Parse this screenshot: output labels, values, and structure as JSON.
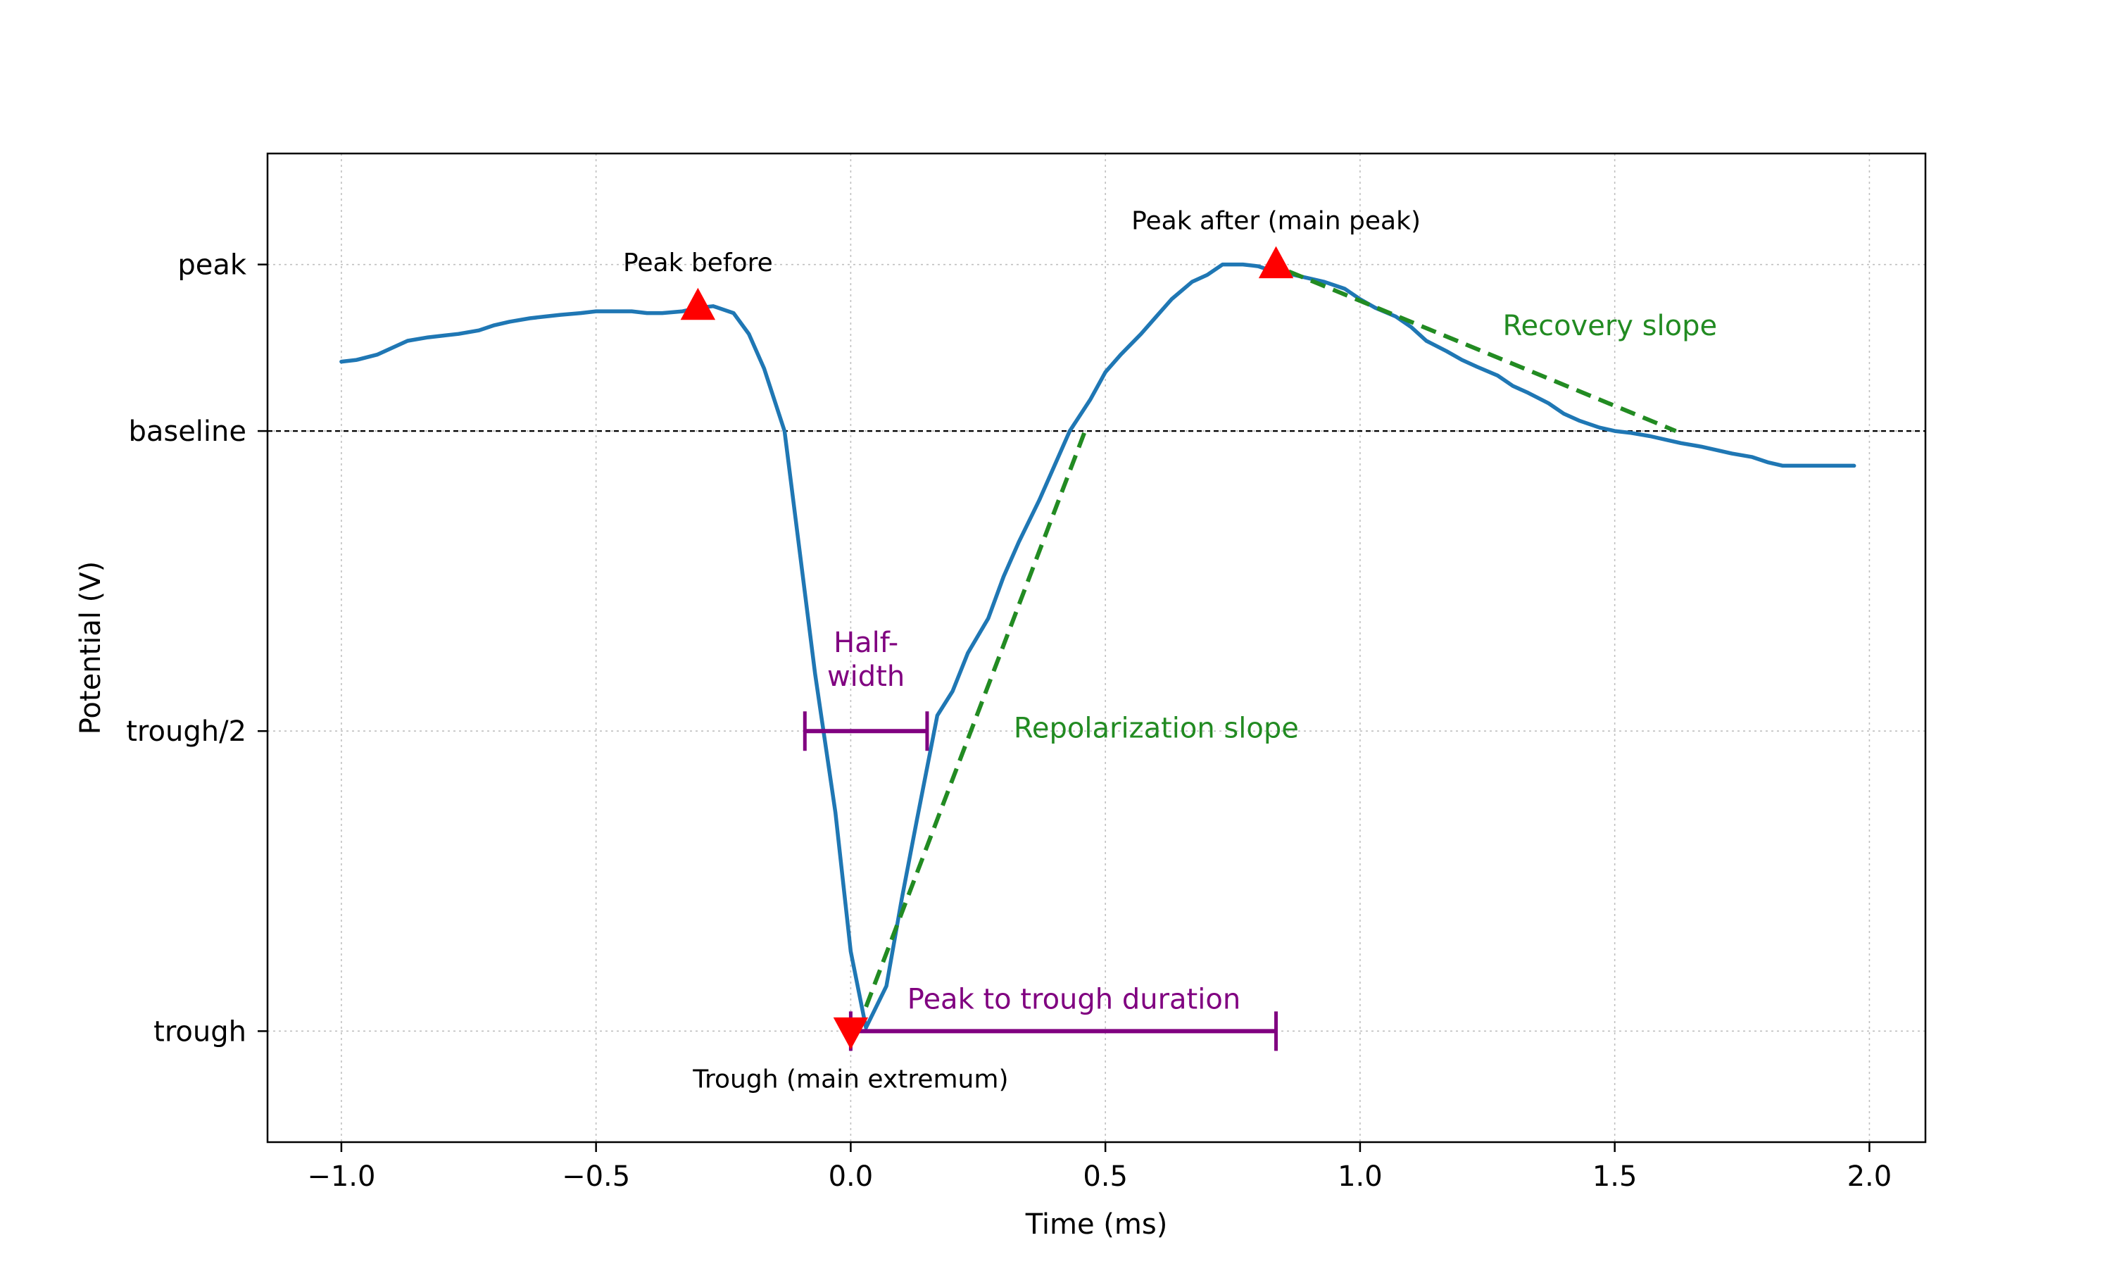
{
  "chart_data": {
    "type": "line",
    "xlabel": "Time (ms)",
    "ylabel": "Potential (V)",
    "xlim": [
      -1.145,
      2.11
    ],
    "ylim": [
      -1.85,
      1.0
    ],
    "x_ticks": [
      -1.0,
      -0.5,
      0.0,
      0.5,
      1.0,
      1.5,
      2.0
    ],
    "x_tick_labels": [
      "−1.0",
      "−0.5",
      "0.0",
      "0.5",
      "1.0",
      "1.5",
      "2.0"
    ],
    "y_ticks": [
      {
        "value": 0.68,
        "label": "peak"
      },
      {
        "value": 0.2,
        "label": "baseline"
      },
      {
        "value": -0.665,
        "label": "trough/2"
      },
      {
        "value": -1.53,
        "label": "trough"
      }
    ],
    "grid": true,
    "baseline": 0.2,
    "series": [
      {
        "color": "#1f77b4",
        "x": [
          -1.0,
          -0.97,
          -0.93,
          -0.9,
          -0.87,
          -0.83,
          -0.8,
          -0.77,
          -0.73,
          -0.7,
          -0.67,
          -0.63,
          -0.6,
          -0.57,
          -0.53,
          -0.5,
          -0.47,
          -0.43,
          -0.4,
          -0.37,
          -0.33,
          -0.3,
          -0.27,
          -0.23,
          -0.2,
          -0.17,
          -0.13,
          -0.1,
          -0.07,
          -0.03,
          0.0,
          0.03,
          0.07,
          0.1,
          0.13,
          0.17,
          0.2,
          0.23,
          0.27,
          0.3,
          0.33,
          0.37,
          0.4,
          0.43,
          0.47,
          0.5,
          0.53,
          0.57,
          0.6,
          0.63,
          0.67,
          0.7,
          0.73,
          0.77,
          0.8,
          0.83,
          0.87,
          0.9,
          0.93,
          0.97,
          1.0,
          1.03,
          1.07,
          1.1,
          1.13,
          1.17,
          1.2,
          1.23,
          1.27,
          1.3,
          1.33,
          1.37,
          1.4,
          1.43,
          1.47,
          1.5,
          1.53,
          1.57,
          1.6,
          1.63,
          1.67,
          1.7,
          1.73,
          1.77,
          1.8,
          1.83,
          1.87,
          1.9,
          1.93,
          1.97
        ],
        "y": [
          0.4,
          0.405,
          0.42,
          0.44,
          0.46,
          0.47,
          0.475,
          0.48,
          0.49,
          0.505,
          0.515,
          0.525,
          0.53,
          0.535,
          0.54,
          0.545,
          0.545,
          0.545,
          0.54,
          0.54,
          0.545,
          0.555,
          0.56,
          0.54,
          0.48,
          0.38,
          0.2,
          -0.15,
          -0.5,
          -0.9,
          -1.3,
          -1.52,
          -1.4,
          -1.15,
          -0.92,
          -0.62,
          -0.55,
          -0.44,
          -0.34,
          -0.22,
          -0.12,
          0.0,
          0.1,
          0.2,
          0.29,
          0.37,
          0.42,
          0.48,
          0.53,
          0.58,
          0.63,
          0.65,
          0.68,
          0.68,
          0.675,
          0.66,
          0.65,
          0.64,
          0.63,
          0.61,
          0.58,
          0.555,
          0.53,
          0.5,
          0.46,
          0.43,
          0.405,
          0.385,
          0.36,
          0.33,
          0.31,
          0.28,
          0.25,
          0.23,
          0.21,
          0.2,
          0.195,
          0.185,
          0.175,
          0.165,
          0.155,
          0.145,
          0.135,
          0.125,
          0.11,
          0.1,
          0.1,
          0.1,
          0.1,
          0.1
        ]
      }
    ],
    "markers": [
      {
        "x": -0.3,
        "y": 0.56,
        "shape": "triangle-up",
        "color": "#ff0000",
        "label": "Peak before"
      },
      {
        "x": 0.835,
        "y": 0.68,
        "shape": "triangle-up",
        "color": "#ff0000",
        "label": "Peak after (main peak)"
      },
      {
        "x": 0.0,
        "y": -1.53,
        "shape": "triangle-down",
        "color": "#ff0000",
        "label": "Trough (main extremum)"
      }
    ],
    "slopes": [
      {
        "x": [
          0.03,
          0.46
        ],
        "y": [
          -1.46,
          0.2
        ],
        "color": "#228b22",
        "label": "Repolarization slope",
        "label_pos": [
          0.32,
          -0.655
        ]
      },
      {
        "x": [
          0.86,
          1.62
        ],
        "y": [
          0.66,
          0.2
        ],
        "color": "#228b22",
        "label": "Recovery slope",
        "label_pos": [
          1.28,
          0.505
        ]
      }
    ],
    "measures": [
      {
        "x": [
          -0.09,
          0.15
        ],
        "y": -0.665,
        "color": "#800080",
        "label": "Half-\nwidth"
      },
      {
        "x": [
          0.0,
          0.835
        ],
        "y": -1.53,
        "color": "#800080",
        "label": "Peak to trough duration"
      }
    ]
  }
}
